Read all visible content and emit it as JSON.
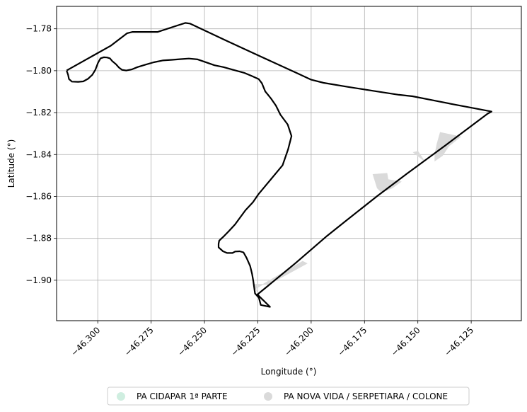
{
  "chart_data": {
    "type": "map",
    "xlabel": "Longitude (°)",
    "ylabel": "Latitude (°)",
    "xlim": [
      -46.3193,
      -46.1015
    ],
    "ylim": [
      -1.9193,
      -1.7693
    ],
    "grid": true,
    "legend_placement": "bottom-center",
    "x_ticks": [
      {
        "value": -46.3,
        "label": "−46.300"
      },
      {
        "value": -46.275,
        "label": "−46.275"
      },
      {
        "value": -46.25,
        "label": "−46.250"
      },
      {
        "value": -46.225,
        "label": "−46.225"
      },
      {
        "value": -46.2,
        "label": "−46.200"
      },
      {
        "value": -46.175,
        "label": "−46.175"
      },
      {
        "value": -46.15,
        "label": "−46.150"
      },
      {
        "value": -46.125,
        "label": "−46.125"
      }
    ],
    "y_ticks": [
      {
        "value": -1.78,
        "label": "−1.78"
      },
      {
        "value": -1.8,
        "label": "−1.80"
      },
      {
        "value": -1.82,
        "label": "−1.82"
      },
      {
        "value": -1.84,
        "label": "−1.84"
      },
      {
        "value": -1.86,
        "label": "−1.86"
      },
      {
        "value": -1.88,
        "label": "−1.88"
      },
      {
        "value": -1.9,
        "label": "−1.90"
      }
    ],
    "outline": {
      "stroke": "#000000",
      "coords": [
        [
          -46.3146,
          -1.7999
        ],
        [
          -46.2938,
          -1.788
        ],
        [
          -46.2862,
          -1.7821
        ],
        [
          -46.2837,
          -1.7815
        ],
        [
          -46.2719,
          -1.7815
        ],
        [
          -46.259,
          -1.7772
        ],
        [
          -46.2568,
          -1.7775
        ],
        [
          -46.2399,
          -1.7856
        ],
        [
          -46.2241,
          -1.793
        ],
        [
          -46.2066,
          -1.8012
        ],
        [
          -46.2,
          -1.8043
        ],
        [
          -46.1942,
          -1.8058
        ],
        [
          -46.1829,
          -1.8077
        ],
        [
          -46.171,
          -1.8096
        ],
        [
          -46.1589,
          -1.8115
        ],
        [
          -46.1525,
          -1.8122
        ],
        [
          -46.1431,
          -1.8141
        ],
        [
          -46.1326,
          -1.8162
        ],
        [
          -46.1231,
          -1.818
        ],
        [
          -46.1155,
          -1.8195
        ],
        [
          -46.1173,
          -1.8205
        ],
        [
          -46.1369,
          -1.8355
        ],
        [
          -46.1553,
          -1.8493
        ],
        [
          -46.169,
          -1.8598
        ],
        [
          -46.1844,
          -1.8722
        ],
        [
          -46.1925,
          -1.8788
        ],
        [
          -46.2072,
          -1.8917
        ],
        [
          -46.2199,
          -1.9024
        ],
        [
          -46.2252,
          -1.9068
        ],
        [
          -46.2193,
          -1.9127
        ],
        [
          -46.2212,
          -1.9123
        ],
        [
          -46.2236,
          -1.9118
        ],
        [
          -46.2245,
          -1.9084
        ],
        [
          -46.2263,
          -1.9063
        ],
        [
          -46.2271,
          -1.9004
        ],
        [
          -46.2277,
          -1.8969
        ],
        [
          -46.2286,
          -1.8932
        ],
        [
          -46.2303,
          -1.8893
        ],
        [
          -46.2317,
          -1.8867
        ],
        [
          -46.2335,
          -1.8862
        ],
        [
          -46.2356,
          -1.8863
        ],
        [
          -46.2369,
          -1.887
        ],
        [
          -46.2394,
          -1.887
        ],
        [
          -46.2413,
          -1.8862
        ],
        [
          -46.2434,
          -1.8843
        ],
        [
          -46.2434,
          -1.8826
        ],
        [
          -46.2431,
          -1.8811
        ],
        [
          -46.2408,
          -1.8789
        ],
        [
          -46.2386,
          -1.8766
        ],
        [
          -46.2357,
          -1.8734
        ],
        [
          -46.2331,
          -1.8698
        ],
        [
          -46.2308,
          -1.8666
        ],
        [
          -46.2273,
          -1.8628
        ],
        [
          -46.2246,
          -1.8588
        ],
        [
          -46.2213,
          -1.8548
        ],
        [
          -46.2173,
          -1.8499
        ],
        [
          -46.2134,
          -1.8451
        ],
        [
          -46.2108,
          -1.8375
        ],
        [
          -46.2092,
          -1.8312
        ],
        [
          -46.211,
          -1.8257
        ],
        [
          -46.2144,
          -1.821
        ],
        [
          -46.2165,
          -1.8167
        ],
        [
          -46.2189,
          -1.8132
        ],
        [
          -46.2215,
          -1.8099
        ],
        [
          -46.2231,
          -1.806
        ],
        [
          -46.2246,
          -1.804
        ],
        [
          -46.2279,
          -1.8025
        ],
        [
          -46.2312,
          -1.8011
        ],
        [
          -46.2365,
          -1.7996
        ],
        [
          -46.2411,
          -1.7983
        ],
        [
          -46.2453,
          -1.7974
        ],
        [
          -46.249,
          -1.7961
        ],
        [
          -46.2532,
          -1.7946
        ],
        [
          -46.2573,
          -1.7942
        ],
        [
          -46.2616,
          -1.7945
        ],
        [
          -46.2652,
          -1.7948
        ],
        [
          -46.2696,
          -1.7951
        ],
        [
          -46.2738,
          -1.796
        ],
        [
          -46.2776,
          -1.7971
        ],
        [
          -46.2814,
          -1.7983
        ],
        [
          -46.2841,
          -1.7994
        ],
        [
          -46.2866,
          -1.7999
        ],
        [
          -46.2886,
          -1.7996
        ],
        [
          -46.2901,
          -1.7985
        ],
        [
          -46.2915,
          -1.7969
        ],
        [
          -46.2932,
          -1.7954
        ],
        [
          -46.2943,
          -1.7941
        ],
        [
          -46.2957,
          -1.7937
        ],
        [
          -46.2972,
          -1.7936
        ],
        [
          -46.2987,
          -1.7941
        ],
        [
          -46.2999,
          -1.7963
        ],
        [
          -46.3011,
          -1.7995
        ],
        [
          -46.3026,
          -1.802
        ],
        [
          -46.3046,
          -1.8039
        ],
        [
          -46.3068,
          -1.8051
        ],
        [
          -46.3092,
          -1.8053
        ],
        [
          -46.3121,
          -1.8052
        ],
        [
          -46.3135,
          -1.804
        ],
        [
          -46.3139,
          -1.802
        ],
        [
          -46.3146,
          -1.7999
        ]
      ]
    },
    "series": [
      {
        "name": "PA CIDAPAR 1ª PARTE",
        "color": "#cfeee0",
        "polygons": []
      },
      {
        "name": "PA NOVA VIDA / SERPETIARA / COLONE",
        "color": "#dadada",
        "polygons": [
          [
            [
              -46.142,
              -1.84
            ],
            [
              -46.141,
              -1.835
            ],
            [
              -46.1395,
              -1.8295
            ],
            [
              -46.13,
              -1.8315
            ],
            [
              -46.1355,
              -1.836
            ],
            [
              -46.1385,
              -1.8405
            ],
            [
              -46.142,
              -1.843
            ]
          ],
          [
            [
              -46.158,
              -1.853
            ],
            [
              -46.164,
              -1.852
            ],
            [
              -46.1645,
              -1.849
            ],
            [
              -46.171,
              -1.8495
            ],
            [
              -46.169,
              -1.856
            ],
            [
              -46.167,
              -1.858
            ],
            [
              -46.162,
              -1.856
            ]
          ],
          [
            [
              -46.227,
              -1.902
            ],
            [
              -46.22,
              -1.902
            ],
            [
              -46.202,
              -1.892
            ],
            [
              -46.204,
              -1.891
            ],
            [
              -46.226,
              -1.904
            ],
            [
              -46.223,
              -1.91
            ],
            [
              -46.225,
              -1.906
            ]
          ],
          [
            [
              -46.152,
              -1.839
            ],
            [
              -46.147,
              -1.843
            ],
            [
              -46.15,
              -1.8385
            ]
          ]
        ]
      }
    ]
  }
}
